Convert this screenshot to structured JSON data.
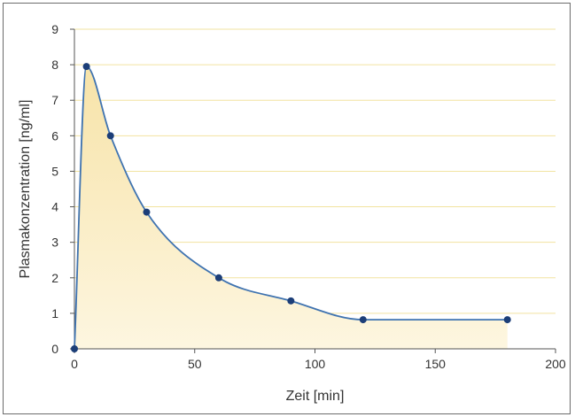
{
  "chart_data": {
    "type": "line",
    "title": "",
    "xlabel": "Zeit [min]",
    "ylabel": "Plasmakonzentration [ng/ml]",
    "xlim": [
      0,
      200
    ],
    "ylim": [
      0,
      9
    ],
    "x_ticks": [
      0,
      50,
      100,
      150,
      200
    ],
    "y_ticks": [
      0,
      1,
      2,
      3,
      4,
      5,
      6,
      7,
      8,
      9
    ],
    "x_tick_labels": [
      "0",
      "50",
      "100",
      "150",
      "200"
    ],
    "y_tick_labels": [
      "0",
      "1",
      "2",
      "3",
      "4",
      "5",
      "6",
      "7",
      "8",
      "9"
    ],
    "grid": "horizontal",
    "area_fill": true,
    "series": [
      {
        "x": [
          0,
          5,
          15,
          30,
          60,
          90,
          120,
          180
        ],
        "y": [
          0,
          7.95,
          6.0,
          3.85,
          2.0,
          1.35,
          0.82,
          0.82
        ]
      }
    ],
    "colors": {
      "line": "#3f73b0",
      "marker": "#1c3e78",
      "area_top": "#f7e3a8",
      "area_bottom": "#fdf6e0",
      "grid": "#f2e3a0",
      "axis": "#555555"
    }
  }
}
